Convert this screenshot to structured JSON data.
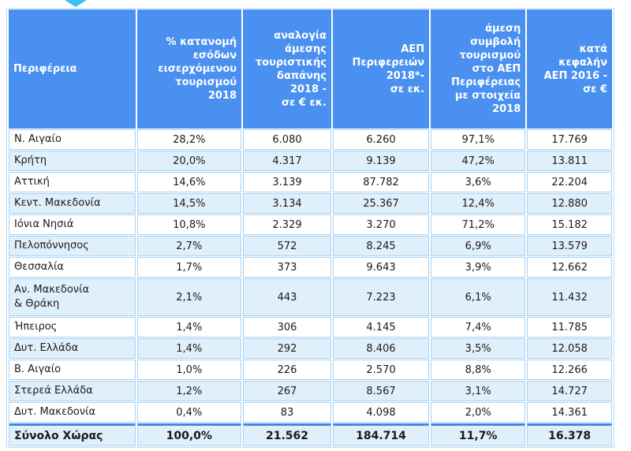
{
  "table": {
    "headers": [
      "Περιφέρεια",
      "% κατανομή\nεσόδων\nεισερχόμενου\nτουρισμού\n2018",
      "αναλογία\nάμεσης\nτουριστικής\nδαπάνης\n2018 -\nσε € εκ.",
      "ΑΕΠ\nΠεριφερειών\n2018*-\nσε εκ.",
      "άμεση\nσυμβολή\nτουρισμού\nστο ΑΕΠ\nΠεριφέρειας\nμε στοιχεία\n2018",
      "κατά\nκεφαλήν\nΑΕΠ 2016 -\nσε €"
    ],
    "rows": [
      [
        "Ν. Αιγαίο",
        "28,2%",
        "6.080",
        "6.260",
        "97,1%",
        "17.769"
      ],
      [
        "Κρήτη",
        "20,0%",
        "4.317",
        "9.139",
        "47,2%",
        "13.811"
      ],
      [
        "Αττική",
        "14,6%",
        "3.139",
        "87.782",
        "3,6%",
        "22.204"
      ],
      [
        "Κεντ. Μακεδονία",
        "14,5%",
        "3.134",
        "25.367",
        "12,4%",
        "12.880"
      ],
      [
        "Ιόνια Νησιά",
        "10,8%",
        "2.329",
        "3.270",
        "71,2%",
        "15.182"
      ],
      [
        "Πελοπόννησος",
        "2,7%",
        "572",
        "8.245",
        "6,9%",
        "13.579"
      ],
      [
        "Θεσσαλία",
        "1,7%",
        "373",
        "9.643",
        "3,9%",
        "12.662"
      ],
      [
        "Αν. Μακεδονία\n& Θράκη",
        "2,1%",
        "443",
        "7.223",
        "6,1%",
        "11.432"
      ],
      [
        "Ήπειρος",
        "1,4%",
        "306",
        "4.145",
        "7,4%",
        "11.785"
      ],
      [
        "Δυτ. Ελλάδα",
        "1,4%",
        "292",
        "8.406",
        "3,5%",
        "12.058"
      ],
      [
        "Β. Αιγαίο",
        "1,0%",
        "226",
        "2.570",
        "8,8%",
        "12.266"
      ],
      [
        "Στερεά Ελλάδα",
        "1,2%",
        "267",
        "8.567",
        "3,1%",
        "14.727"
      ],
      [
        "Δυτ. Μακεδονία",
        "0,4%",
        "83",
        "4.098",
        "2,0%",
        "14.361"
      ]
    ],
    "total": [
      "Σύνολο Χώρας",
      "100,0%",
      "21.562",
      "184.714",
      "11,7%",
      "16.378"
    ]
  },
  "colors": {
    "header_bg": "#4a90f0",
    "alt_row": "#e0f0fa",
    "border": "#a9d3f5"
  }
}
